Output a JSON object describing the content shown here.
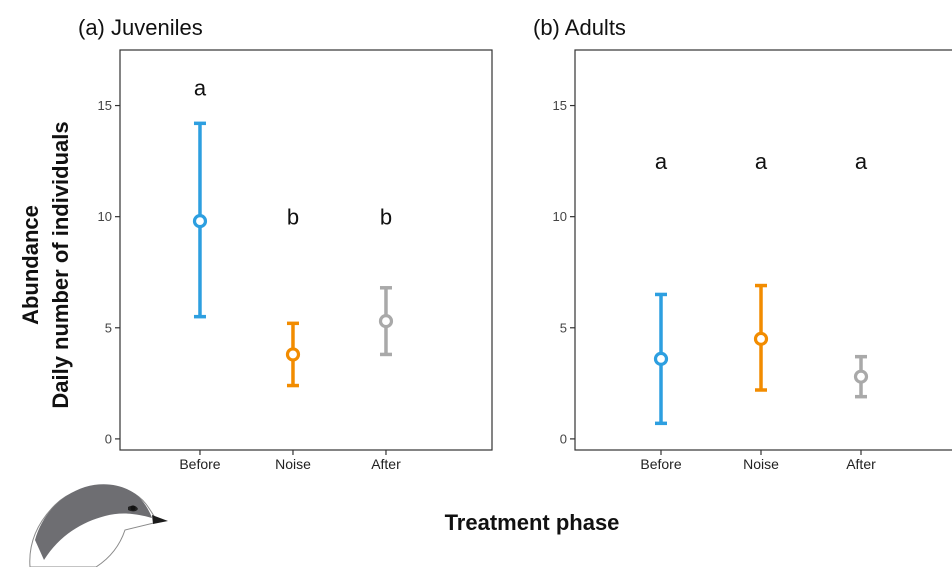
{
  "figure": {
    "ylabel_line1": "Abundance",
    "ylabel_line2": "Daily number of individuals",
    "xlabel": "Treatment phase"
  },
  "chart_data": [
    {
      "type": "scatter",
      "title": "(a) Juveniles",
      "categories": [
        "Before",
        "Noise",
        "After"
      ],
      "ylim": [
        -0.5,
        17.5
      ],
      "yticks": [
        0,
        5,
        10,
        15
      ],
      "points": [
        {
          "category": "Before",
          "mean": 9.8,
          "lower": 5.5,
          "upper": 14.2,
          "letter": "a",
          "color": "#2d9fe0"
        },
        {
          "category": "Noise",
          "mean": 3.8,
          "lower": 2.4,
          "upper": 5.2,
          "letter": "b",
          "color": "#f28c00"
        },
        {
          "category": "After",
          "mean": 5.3,
          "lower": 3.8,
          "upper": 6.8,
          "letter": "b",
          "color": "#a9a9a9"
        }
      ],
      "grid": false
    },
    {
      "type": "scatter",
      "title": "(b) Adults",
      "categories": [
        "Before",
        "Noise",
        "After"
      ],
      "ylim": [
        -0.5,
        17.5
      ],
      "yticks": [
        0,
        5,
        10,
        15
      ],
      "points": [
        {
          "category": "Before",
          "mean": 3.6,
          "lower": 0.7,
          "upper": 6.5,
          "letter": "a",
          "color": "#2d9fe0"
        },
        {
          "category": "Noise",
          "mean": 4.5,
          "lower": 2.2,
          "upper": 6.9,
          "letter": "a",
          "color": "#f28c00"
        },
        {
          "category": "After",
          "mean": 2.8,
          "lower": 1.9,
          "upper": 3.7,
          "letter": "a",
          "color": "#a9a9a9"
        }
      ],
      "grid": false
    }
  ],
  "bird_icon": "bird-illustration"
}
